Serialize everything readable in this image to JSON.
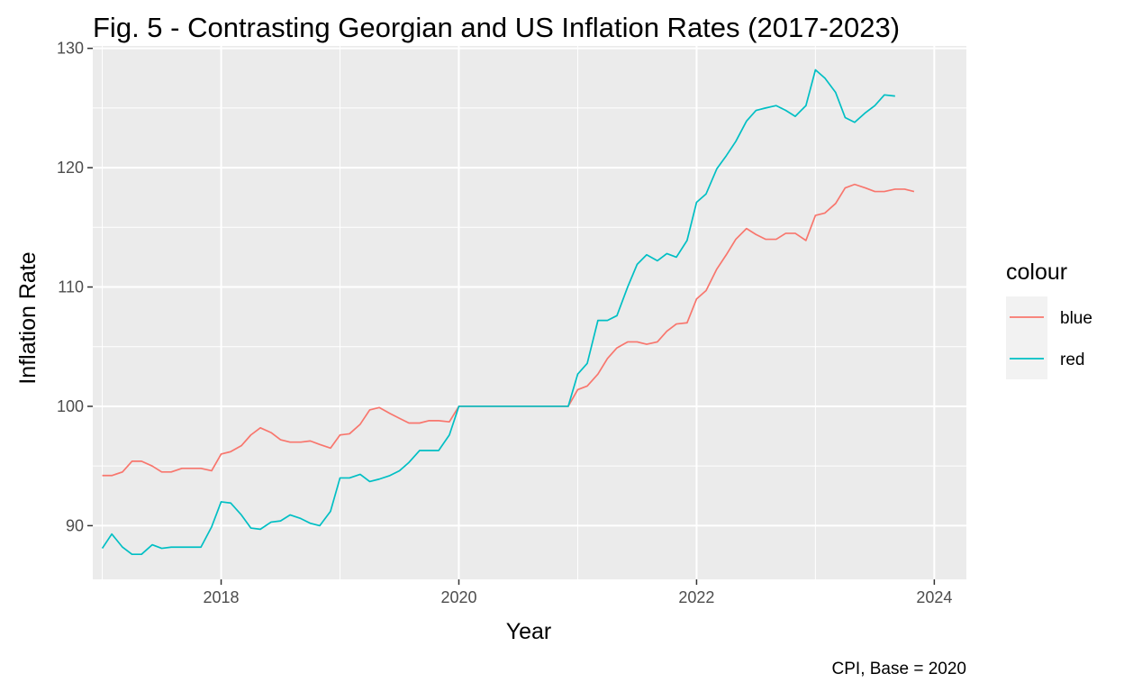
{
  "chart_data": {
    "type": "line",
    "title": "Fig. 5 - Contrasting Georgian and US Inflation Rates (2017-2023)",
    "xlabel": "Year",
    "ylabel": "Inflation Rate",
    "caption": "CPI, Base = 2020",
    "xlim": [
      2016.92,
      2024.27
    ],
    "ylim": [
      85.5,
      130.2
    ],
    "x_ticks": [
      2018,
      2020,
      2022,
      2024
    ],
    "y_ticks": [
      90,
      100,
      110,
      120,
      130
    ],
    "grid": true,
    "legend": {
      "title": "colour",
      "placement": "right"
    },
    "series": [
      {
        "name": "blue",
        "color": "#F8766D",
        "points": [
          [
            2017.0,
            94.2
          ],
          [
            2017.08,
            94.2
          ],
          [
            2017.17,
            94.5
          ],
          [
            2017.25,
            95.4
          ],
          [
            2017.33,
            95.4
          ],
          [
            2017.42,
            95.0
          ],
          [
            2017.5,
            94.5
          ],
          [
            2017.58,
            94.5
          ],
          [
            2017.67,
            94.8
          ],
          [
            2017.75,
            94.8
          ],
          [
            2017.83,
            94.8
          ],
          [
            2017.92,
            94.6
          ],
          [
            2018.0,
            96.0
          ],
          [
            2018.08,
            96.2
          ],
          [
            2018.17,
            96.7
          ],
          [
            2018.25,
            97.6
          ],
          [
            2018.33,
            98.2
          ],
          [
            2018.42,
            97.8
          ],
          [
            2018.5,
            97.2
          ],
          [
            2018.58,
            97.0
          ],
          [
            2018.67,
            97.0
          ],
          [
            2018.75,
            97.1
          ],
          [
            2018.83,
            96.8
          ],
          [
            2018.92,
            96.5
          ],
          [
            2019.0,
            97.6
          ],
          [
            2019.08,
            97.7
          ],
          [
            2019.17,
            98.5
          ],
          [
            2019.25,
            99.7
          ],
          [
            2019.33,
            99.9
          ],
          [
            2019.42,
            99.4
          ],
          [
            2019.5,
            99.0
          ],
          [
            2019.58,
            98.6
          ],
          [
            2019.67,
            98.6
          ],
          [
            2019.75,
            98.8
          ],
          [
            2019.83,
            98.8
          ],
          [
            2019.92,
            98.7
          ],
          [
            2020.0,
            100.0
          ],
          [
            2020.08,
            100.0
          ],
          [
            2020.17,
            100.0
          ],
          [
            2020.25,
            100.0
          ],
          [
            2020.33,
            100.0
          ],
          [
            2020.42,
            100.0
          ],
          [
            2020.5,
            100.0
          ],
          [
            2020.58,
            100.0
          ],
          [
            2020.67,
            100.0
          ],
          [
            2020.75,
            100.0
          ],
          [
            2020.83,
            100.0
          ],
          [
            2020.92,
            100.0
          ],
          [
            2021.0,
            101.4
          ],
          [
            2021.08,
            101.7
          ],
          [
            2021.17,
            102.7
          ],
          [
            2021.25,
            104.0
          ],
          [
            2021.33,
            104.9
          ],
          [
            2021.42,
            105.4
          ],
          [
            2021.5,
            105.4
          ],
          [
            2021.58,
            105.2
          ],
          [
            2021.67,
            105.4
          ],
          [
            2021.75,
            106.3
          ],
          [
            2021.83,
            106.9
          ],
          [
            2021.92,
            107.0
          ],
          [
            2022.0,
            109.0
          ],
          [
            2022.08,
            109.7
          ],
          [
            2022.17,
            111.5
          ],
          [
            2022.25,
            112.7
          ],
          [
            2022.33,
            114.0
          ],
          [
            2022.42,
            114.9
          ],
          [
            2022.5,
            114.4
          ],
          [
            2022.58,
            114.0
          ],
          [
            2022.67,
            114.0
          ],
          [
            2022.75,
            114.5
          ],
          [
            2022.83,
            114.5
          ],
          [
            2022.92,
            113.9
          ],
          [
            2023.0,
            116.0
          ],
          [
            2023.08,
            116.2
          ],
          [
            2023.17,
            117.0
          ],
          [
            2023.25,
            118.3
          ],
          [
            2023.33,
            118.6
          ],
          [
            2023.42,
            118.3
          ],
          [
            2023.5,
            118.0
          ],
          [
            2023.58,
            118.0
          ],
          [
            2023.67,
            118.2
          ],
          [
            2023.75,
            118.2
          ],
          [
            2023.83,
            118.0
          ]
        ]
      },
      {
        "name": "red",
        "color": "#00BFC4",
        "points": [
          [
            2017.0,
            88.1
          ],
          [
            2017.08,
            89.3
          ],
          [
            2017.17,
            88.2
          ],
          [
            2017.25,
            87.6
          ],
          [
            2017.33,
            87.6
          ],
          [
            2017.42,
            88.4
          ],
          [
            2017.5,
            88.1
          ],
          [
            2017.58,
            88.2
          ],
          [
            2017.67,
            88.2
          ],
          [
            2017.75,
            88.2
          ],
          [
            2017.83,
            88.2
          ],
          [
            2017.92,
            89.9
          ],
          [
            2018.0,
            92.0
          ],
          [
            2018.08,
            91.9
          ],
          [
            2018.17,
            90.9
          ],
          [
            2018.25,
            89.8
          ],
          [
            2018.33,
            89.7
          ],
          [
            2018.42,
            90.3
          ],
          [
            2018.5,
            90.4
          ],
          [
            2018.58,
            90.9
          ],
          [
            2018.67,
            90.6
          ],
          [
            2018.75,
            90.2
          ],
          [
            2018.83,
            90.0
          ],
          [
            2018.92,
            91.2
          ],
          [
            2019.0,
            94.0
          ],
          [
            2019.08,
            94.0
          ],
          [
            2019.17,
            94.3
          ],
          [
            2019.25,
            93.7
          ],
          [
            2019.33,
            93.9
          ],
          [
            2019.42,
            94.2
          ],
          [
            2019.5,
            94.6
          ],
          [
            2019.58,
            95.3
          ],
          [
            2019.67,
            96.3
          ],
          [
            2019.75,
            96.3
          ],
          [
            2019.83,
            96.3
          ],
          [
            2019.92,
            97.6
          ],
          [
            2020.0,
            100.0
          ],
          [
            2020.08,
            100.0
          ],
          [
            2020.17,
            100.0
          ],
          [
            2020.25,
            100.0
          ],
          [
            2020.33,
            100.0
          ],
          [
            2020.42,
            100.0
          ],
          [
            2020.5,
            100.0
          ],
          [
            2020.58,
            100.0
          ],
          [
            2020.67,
            100.0
          ],
          [
            2020.75,
            100.0
          ],
          [
            2020.83,
            100.0
          ],
          [
            2020.92,
            100.0
          ],
          [
            2021.0,
            102.7
          ],
          [
            2021.08,
            103.6
          ],
          [
            2021.17,
            107.2
          ],
          [
            2021.25,
            107.2
          ],
          [
            2021.33,
            107.6
          ],
          [
            2021.42,
            110.0
          ],
          [
            2021.5,
            111.9
          ],
          [
            2021.58,
            112.7
          ],
          [
            2021.67,
            112.2
          ],
          [
            2021.75,
            112.8
          ],
          [
            2021.83,
            112.5
          ],
          [
            2021.92,
            113.9
          ],
          [
            2022.0,
            117.1
          ],
          [
            2022.08,
            117.8
          ],
          [
            2022.17,
            119.9
          ],
          [
            2022.25,
            121.0
          ],
          [
            2022.33,
            122.2
          ],
          [
            2022.42,
            123.9
          ],
          [
            2022.5,
            124.8
          ],
          [
            2022.58,
            125.0
          ],
          [
            2022.67,
            125.2
          ],
          [
            2022.75,
            124.8
          ],
          [
            2022.83,
            124.3
          ],
          [
            2022.92,
            125.2
          ],
          [
            2023.0,
            128.2
          ],
          [
            2023.08,
            127.5
          ],
          [
            2023.17,
            126.3
          ],
          [
            2023.25,
            124.2
          ],
          [
            2023.33,
            123.8
          ],
          [
            2023.42,
            124.6
          ],
          [
            2023.5,
            125.2
          ],
          [
            2023.58,
            126.1
          ],
          [
            2023.67,
            126.0
          ]
        ]
      }
    ]
  }
}
